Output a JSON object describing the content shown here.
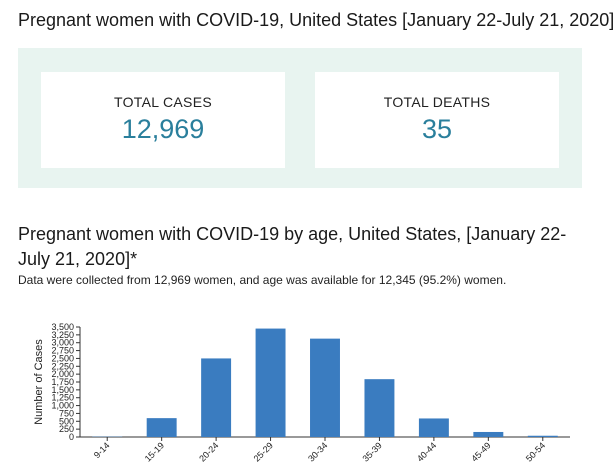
{
  "header": {
    "title": "Pregnant women with COVID-19, United States [January 22-July 21, 2020]"
  },
  "summary": {
    "cases_label": "TOTAL CASES",
    "cases_value": "12,969",
    "deaths_label": "TOTAL DEATHS",
    "deaths_value": "35"
  },
  "section": {
    "title": "Pregnant women with COVID-19 by age, United States, [January 22-July 21, 2020]*",
    "note": "Data were collected from 12,969 women, and age was available for 12,345 (95.2%) women."
  },
  "colors": {
    "bar": "#3a7cc0",
    "accent": "#2a7f9c",
    "panel": "#e8f4f0"
  },
  "chart_data": {
    "type": "bar",
    "categories": [
      "9-14",
      "15-19",
      "20-24",
      "25-29",
      "30-34",
      "35-39",
      "40-44",
      "45-49",
      "50-54"
    ],
    "values": [
      10,
      600,
      2500,
      3450,
      3130,
      1840,
      590,
      160,
      40
    ],
    "xlabel": "",
    "ylabel": "Number of Cases",
    "ylim": [
      0,
      3500
    ],
    "yticks": [
      0,
      250,
      500,
      750,
      1000,
      1250,
      1500,
      1750,
      2000,
      2250,
      2500,
      2750,
      3000,
      3250,
      3500
    ],
    "ytick_labels": [
      "0",
      "250",
      "500",
      "750",
      "1,000",
      "1,250",
      "1,500",
      "1,750",
      "2,000",
      "2,250",
      "2,500",
      "2,750",
      "3,000",
      "3,250",
      "3,500"
    ],
    "grid": false,
    "legend": "none"
  }
}
